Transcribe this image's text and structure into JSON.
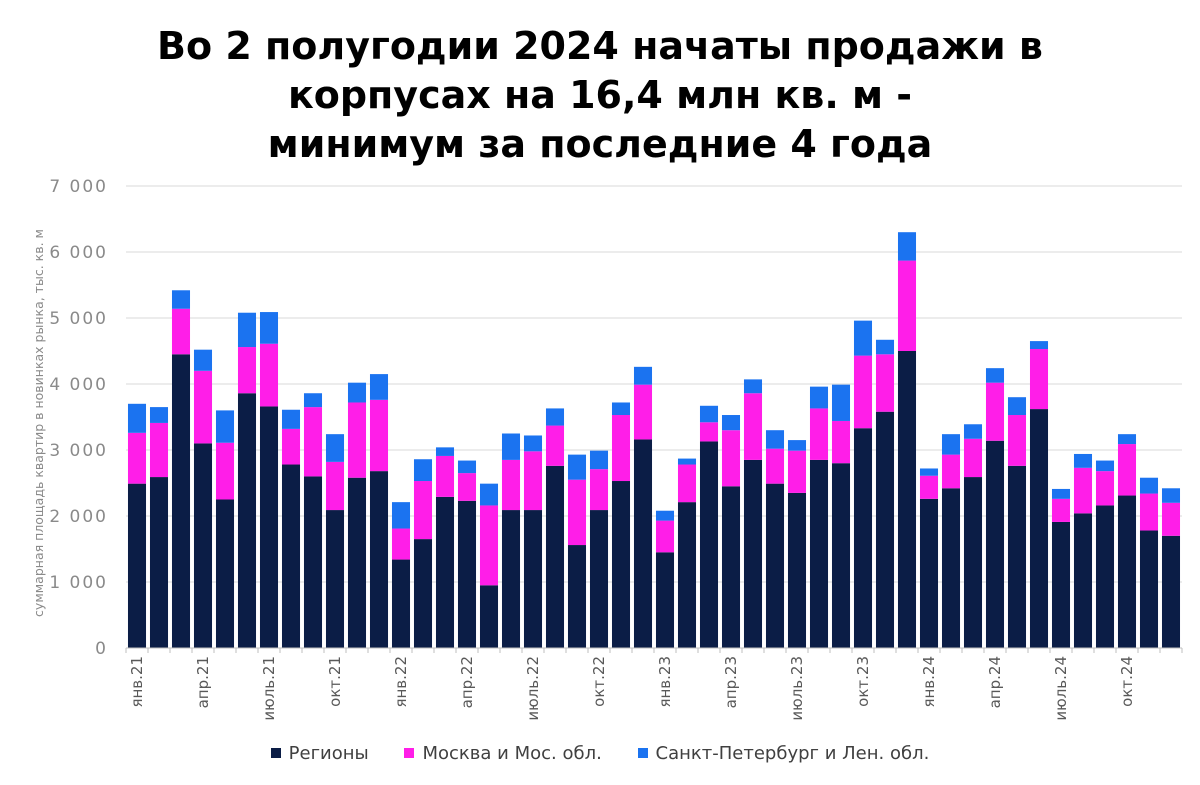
{
  "chart_data": {
    "type": "bar",
    "stacked": true,
    "title_lines": [
      "Во 2 полугодии 2024 начаты продажи в",
      "корпусах на 16,4 млн кв. м -",
      "минимум за последние 4 года"
    ],
    "ylabel": "суммарная площадь квартир в новинках рынка, тыс. кв. м",
    "ylim": [
      0,
      7000
    ],
    "yticks": [
      {
        "value": 0,
        "label": "0"
      },
      {
        "value": 1000,
        "label": "1 000"
      },
      {
        "value": 2000,
        "label": "2 000"
      },
      {
        "value": 3000,
        "label": "3 000"
      },
      {
        "value": 4000,
        "label": "4 000"
      },
      {
        "value": 5000,
        "label": "5 000"
      },
      {
        "value": 6000,
        "label": "6 000"
      },
      {
        "value": 7000,
        "label": "7 000"
      }
    ],
    "grid": true,
    "legend_position": "bottom",
    "xtick_labels": [
      {
        "index": 0,
        "label": "янв.21"
      },
      {
        "index": 3,
        "label": "апр.21"
      },
      {
        "index": 6,
        "label": "июль.21"
      },
      {
        "index": 9,
        "label": "окт.21"
      },
      {
        "index": 12,
        "label": "янв.22"
      },
      {
        "index": 15,
        "label": "апр.22"
      },
      {
        "index": 18,
        "label": "июль.22"
      },
      {
        "index": 21,
        "label": "окт.22"
      },
      {
        "index": 24,
        "label": "янв.23"
      },
      {
        "index": 27,
        "label": "апр.23"
      },
      {
        "index": 30,
        "label": "июль.23"
      },
      {
        "index": 33,
        "label": "окт.23"
      },
      {
        "index": 36,
        "label": "янв.24"
      },
      {
        "index": 39,
        "label": "апр.24"
      },
      {
        "index": 42,
        "label": "июль.24"
      },
      {
        "index": 45,
        "label": "окт.24"
      }
    ],
    "series": [
      {
        "name": "Регионы",
        "color": "#0b1d46",
        "values": [
          2490,
          2590,
          4450,
          3100,
          2250,
          3860,
          3660,
          2780,
          2600,
          2090,
          2580,
          2680,
          1340,
          1650,
          2290,
          2230,
          950,
          2090,
          2090,
          2760,
          1560,
          2090,
          2530,
          3160,
          1450,
          2210,
          3130,
          2450,
          2850,
          2490,
          2350,
          2850,
          2800,
          3330,
          3580,
          4500,
          2260,
          2420,
          2590,
          3140,
          2760,
          3620,
          1910,
          2040,
          2160,
          2310,
          1780,
          1700
        ]
      },
      {
        "name": "Москва и Мос. обл.",
        "color": "#ff1ee8",
        "values": [
          770,
          820,
          690,
          1100,
          860,
          700,
          950,
          540,
          1050,
          730,
          1140,
          1080,
          470,
          880,
          620,
          420,
          1210,
          760,
          890,
          610,
          990,
          620,
          1000,
          830,
          480,
          570,
          290,
          850,
          1010,
          530,
          640,
          780,
          640,
          1100,
          870,
          1370,
          350,
          510,
          580,
          880,
          770,
          910,
          350,
          690,
          520,
          780,
          560,
          500
        ]
      },
      {
        "name": "Санкт-Петербург и Лен. обл.",
        "color": "#1b73f0",
        "values": [
          440,
          240,
          280,
          320,
          490,
          520,
          480,
          290,
          210,
          420,
          300,
          390,
          400,
          330,
          130,
          190,
          330,
          400,
          240,
          260,
          380,
          280,
          190,
          270,
          150,
          90,
          250,
          230,
          210,
          280,
          160,
          330,
          550,
          530,
          220,
          430,
          110,
          310,
          220,
          220,
          270,
          120,
          150,
          210,
          160,
          150,
          240,
          220
        ]
      }
    ]
  }
}
